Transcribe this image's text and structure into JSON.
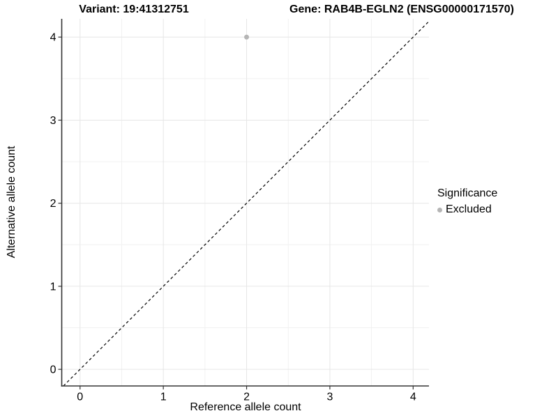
{
  "chart_data": {
    "type": "scatter",
    "title_variant": "Variant: 19:41312751",
    "title_gene": "Gene: RAB4B-EGLN2 (ENSG00000171570)",
    "xlabel": "Reference allele count",
    "ylabel": "Alternative allele count",
    "xlim": [
      -0.22,
      4.19
    ],
    "ylim": [
      -0.2,
      4.22
    ],
    "x_ticks": [
      0,
      1,
      2,
      3,
      4
    ],
    "y_ticks": [
      0,
      1,
      2,
      3,
      4
    ],
    "x_minor": [
      0.5,
      1.5,
      2.5,
      3.5
    ],
    "y_minor": [
      0.5,
      1.5,
      2.5,
      3.5
    ],
    "grid": "major and minor horizontal+vertical gridlines, light gray on white",
    "legend_position": "right",
    "points": [
      {
        "x": 2,
        "y": 4,
        "significance": "Excluded",
        "color": "#b5b5b5"
      }
    ],
    "reference_line": {
      "kind": "identity y=x across full panel",
      "style": "dashed",
      "color": "#000000"
    },
    "legend": {
      "title": "Significance",
      "items": [
        {
          "label": "Excluded",
          "marker": "circle",
          "color": "#b5b5b5"
        }
      ]
    },
    "colors": {
      "grid_major": "#e6e6e6",
      "grid_minor": "#f1f1f1",
      "axis_line": "#333333",
      "tick_mark": "#333333",
      "text": "#000000",
      "background": "#ffffff"
    }
  }
}
